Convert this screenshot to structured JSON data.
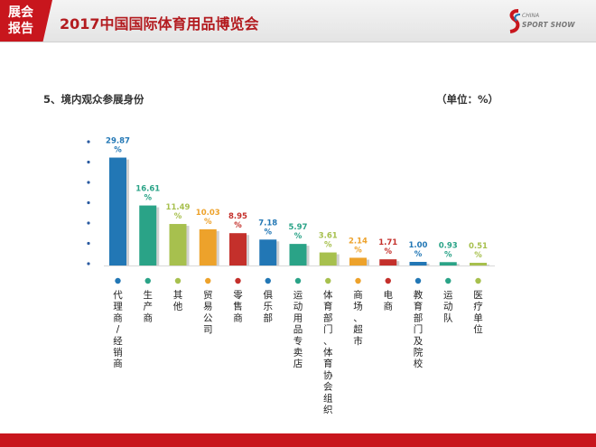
{
  "header": {
    "badge_line1": "展会",
    "badge_line2": "报告",
    "title": "2017中国国际体育用品博览会",
    "logo_line1": "CHINA",
    "logo_line2": "SPORT SHOW"
  },
  "section": {
    "title": "5、境内观众参展身份",
    "unit": "（单位：%）"
  },
  "colors": {
    "brand_red": "#c8161d",
    "blue": "#2277b5",
    "teal": "#2aa387",
    "olive": "#a7c04e",
    "orange": "#eda22b",
    "red": "#c4302b"
  },
  "chart_data": {
    "type": "bar",
    "categories": [
      "代理商/经销商",
      "生产商",
      "其他",
      "贸易公司",
      "零售商",
      "俱乐部",
      "运动用品专卖店",
      "体育部门、体育协会组织",
      "商场、超市",
      "电商",
      "教育部门及院校",
      "运动队",
      "医疗单位"
    ],
    "values": [
      29.87,
      16.61,
      11.49,
      10.03,
      8.95,
      7.18,
      5.97,
      3.61,
      2.14,
      1.71,
      1.0,
      0.93,
      0.51
    ],
    "value_labels": [
      "29.87%",
      "16.61%",
      "11.49%",
      "10.03%",
      "8.95%",
      "7.18%",
      "5.97%",
      "3.61%",
      "2.14%",
      "1.71%",
      "1.00%",
      "0.93%",
      "0.51%"
    ],
    "colors": [
      "#2277b5",
      "#2aa387",
      "#a7c04e",
      "#eda22b",
      "#c4302b",
      "#2277b5",
      "#2aa387",
      "#a7c04e",
      "#eda22b",
      "#c4302b",
      "#2277b5",
      "#2aa387",
      "#a7c04e"
    ],
    "ylim": [
      0,
      30
    ],
    "grid": false,
    "legend": "none"
  }
}
